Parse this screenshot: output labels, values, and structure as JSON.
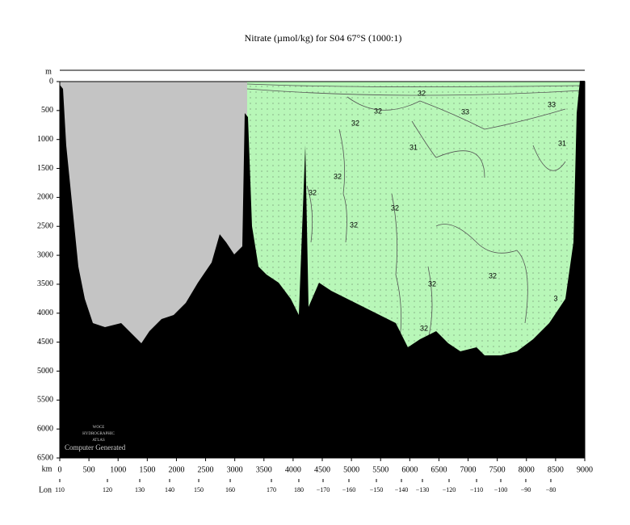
{
  "chart_data": {
    "type": "section",
    "title": "Nitrate (µmol/kg) for S04 67°S (1000:1)",
    "y_label": "m",
    "x_label": "km",
    "lon_label": "Lon",
    "xlim": [
      0,
      9000
    ],
    "ylim": [
      0,
      6500
    ],
    "xticks": [
      0,
      500,
      1000,
      1500,
      2000,
      2500,
      3000,
      3500,
      4000,
      4500,
      5000,
      5500,
      6000,
      6500,
      7000,
      7500,
      8000,
      8500,
      9000
    ],
    "yticks": [
      0,
      500,
      1000,
      1500,
      2000,
      2500,
      3000,
      3500,
      4000,
      4500,
      5000,
      5500,
      6000,
      6500
    ],
    "lon_ticks": [
      {
        "value": 110,
        "km": 0
      },
      {
        "value": 120,
        "km": 817
      },
      {
        "value": 130,
        "km": 1371
      },
      {
        "value": 140,
        "km": 1883
      },
      {
        "value": 150,
        "km": 2382
      },
      {
        "value": 160,
        "km": 2922
      },
      {
        "value": 170,
        "km": 3628
      },
      {
        "value": 180,
        "km": 4098
      },
      {
        "value": -170,
        "label": "−170",
        "km": 4514
      },
      {
        "value": -160,
        "label": "−160",
        "km": 4957
      },
      {
        "value": -150,
        "label": "−150",
        "km": 5428
      },
      {
        "value": -140,
        "label": "−140",
        "km": 5857
      },
      {
        "value": -130,
        "label": "−130",
        "km": 6217
      },
      {
        "value": -120,
        "label": "−120",
        "km": 6674
      },
      {
        "value": -110,
        "label": "−110",
        "km": 7145
      },
      {
        "value": -100,
        "label": "−100",
        "km": 7560
      },
      {
        "value": -90,
        "label": "−90",
        "km": 7989
      },
      {
        "value": -80,
        "label": "−80",
        "km": 8418
      }
    ],
    "contour_labels": [
      {
        "text": "32",
        "x": 6203,
        "y": 209
      },
      {
        "text": "32",
        "x": 5455,
        "y": 516
      },
      {
        "text": "33",
        "x": 6951,
        "y": 530
      },
      {
        "text": "33",
        "x": 8432,
        "y": 404
      },
      {
        "text": "32",
        "x": 5068,
        "y": 725
      },
      {
        "text": "31",
        "x": 6065,
        "y": 1144
      },
      {
        "text": "31",
        "x": 8612,
        "y": 1074
      },
      {
        "text": "32",
        "x": 4763,
        "y": 1646
      },
      {
        "text": "32",
        "x": 4334,
        "y": 1925
      },
      {
        "text": "32",
        "x": 5746,
        "y": 2190
      },
      {
        "text": "32",
        "x": 5040,
        "y": 2483
      },
      {
        "text": "32",
        "x": 6383,
        "y": 3501
      },
      {
        "text": "32",
        "x": 7421,
        "y": 3361
      },
      {
        "text": "32",
        "x": 6245,
        "y": 4268
      },
      {
        "text": "3",
        "x": 8501,
        "y": 3752
      }
    ],
    "watermark": [
      "WOCE",
      "HYDROGRAPHIC",
      "ATLAS"
    ],
    "credit": "Computer Generated"
  }
}
